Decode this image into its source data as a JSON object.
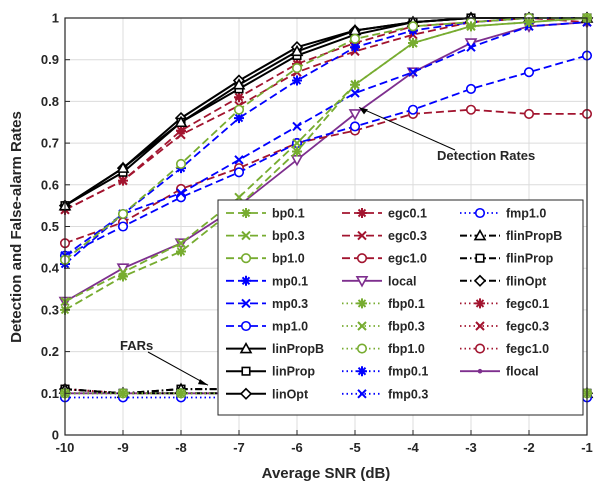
{
  "chart_data": {
    "type": "line",
    "xlabel": "Average SNR (dB)",
    "ylabel": "Detection and False-alarm Rates",
    "xlim": [
      -10,
      -1
    ],
    "ylim": [
      0,
      1
    ],
    "xticks": [
      "-10",
      "-9",
      "-8",
      "-7",
      "-6",
      "-5",
      "-4",
      "-3",
      "-2",
      "-1"
    ],
    "yticks": [
      "0",
      "0.1",
      "0.2",
      "0.3",
      "0.4",
      "0.5",
      "0.6",
      "0.7",
      "0.8",
      "0.9",
      "1"
    ],
    "grid": true,
    "legend_position": "bottom-right",
    "x": [
      -10,
      -9,
      -8,
      -7,
      -6,
      -5,
      -4,
      -3,
      -2,
      -1
    ],
    "annotations": [
      {
        "text": "Detection Rates",
        "target": [
          -5,
          0.8
        ]
      },
      {
        "text": "FARs",
        "target": [
          -7.5,
          0.11
        ]
      }
    ],
    "colors": {
      "green": "#77ac30",
      "blue": "#0000ff",
      "darkred": "#a2142f",
      "black": "#000000",
      "purple": "#7e2f8e"
    },
    "series": [
      {
        "name": "bp0.1",
        "color": "green",
        "dash": "long",
        "marker": "asterisk",
        "values": [
          0.3,
          0.38,
          0.44,
          0.55,
          0.68,
          0.84,
          0.94,
          0.98,
          0.99,
          1.0
        ]
      },
      {
        "name": "bp0.3",
        "color": "green",
        "dash": "long",
        "marker": "x",
        "values": [
          0.32,
          0.39,
          0.46,
          0.57,
          0.7,
          0.84,
          0.94,
          0.98,
          0.99,
          1.0
        ]
      },
      {
        "name": "bp1.0",
        "color": "green",
        "dash": "long",
        "marker": "circle",
        "values": [
          0.42,
          0.53,
          0.65,
          0.78,
          0.88,
          0.95,
          0.98,
          0.99,
          1.0,
          1.0
        ]
      },
      {
        "name": "mp0.1",
        "color": "blue",
        "dash": "long",
        "marker": "asterisk",
        "values": [
          0.41,
          0.53,
          0.64,
          0.76,
          0.85,
          0.93,
          0.97,
          0.99,
          1.0,
          1.0
        ]
      },
      {
        "name": "mp0.3",
        "color": "blue",
        "dash": "long",
        "marker": "x",
        "values": [
          0.43,
          0.53,
          0.58,
          0.66,
          0.74,
          0.82,
          0.87,
          0.93,
          0.98,
          0.99
        ]
      },
      {
        "name": "mp1.0",
        "color": "blue",
        "dash": "long",
        "marker": "circle",
        "values": [
          0.43,
          0.5,
          0.57,
          0.63,
          0.7,
          0.74,
          0.78,
          0.83,
          0.87,
          0.91
        ]
      },
      {
        "name": "linPropB",
        "color": "black",
        "dash": "solid",
        "marker": "triangle",
        "values": [
          0.55,
          0.64,
          0.75,
          0.84,
          0.92,
          0.97,
          0.99,
          1.0,
          1.0,
          1.0
        ]
      },
      {
        "name": "linProp",
        "color": "black",
        "dash": "solid",
        "marker": "square",
        "values": [
          0.55,
          0.63,
          0.75,
          0.83,
          0.91,
          0.96,
          0.99,
          1.0,
          1.0,
          1.0
        ]
      },
      {
        "name": "linOpt",
        "color": "black",
        "dash": "solid",
        "marker": "diamond",
        "values": [
          0.55,
          0.64,
          0.76,
          0.85,
          0.93,
          0.97,
          0.99,
          1.0,
          1.0,
          1.0
        ]
      },
      {
        "name": "egc0.1",
        "color": "darkred",
        "dash": "long",
        "marker": "asterisk",
        "values": [
          0.54,
          0.61,
          0.73,
          0.81,
          0.89,
          0.94,
          0.98,
          0.99,
          1.0,
          1.0
        ]
      },
      {
        "name": "egc0.3",
        "color": "darkred",
        "dash": "long",
        "marker": "x",
        "values": [
          0.54,
          0.61,
          0.72,
          0.79,
          0.87,
          0.92,
          0.96,
          0.99,
          1.0,
          0.99
        ]
      },
      {
        "name": "egc1.0",
        "color": "darkred",
        "dash": "long",
        "marker": "circle",
        "values": [
          0.46,
          0.51,
          0.59,
          0.64,
          0.7,
          0.73,
          0.77,
          0.78,
          0.77,
          0.77
        ]
      },
      {
        "name": "local",
        "color": "purple",
        "dash": "solid",
        "marker": "triangle-down",
        "values": [
          0.32,
          0.4,
          0.46,
          0.55,
          0.66,
          0.77,
          0.87,
          0.94,
          0.98,
          0.99
        ]
      },
      {
        "name": "fbp0.1",
        "color": "green",
        "dash": "dot",
        "marker": "asterisk",
        "values": [
          0.1,
          0.1,
          0.1,
          0.1,
          0.1,
          0.09,
          0.1,
          0.1,
          0.1,
          0.1
        ]
      },
      {
        "name": "fbp0.3",
        "color": "green",
        "dash": "dot",
        "marker": "x",
        "values": [
          0.1,
          0.1,
          0.1,
          0.1,
          0.1,
          0.09,
          0.1,
          0.1,
          0.1,
          0.1
        ]
      },
      {
        "name": "fbp1.0",
        "color": "green",
        "dash": "dot",
        "marker": "circle",
        "values": [
          0.1,
          0.1,
          0.1,
          0.1,
          0.1,
          0.09,
          0.1,
          0.1,
          0.1,
          0.1
        ]
      },
      {
        "name": "fmp0.1",
        "color": "blue",
        "dash": "dot",
        "marker": "asterisk",
        "values": [
          0.1,
          0.1,
          0.1,
          0.1,
          0.1,
          0.09,
          0.09,
          0.1,
          0.1,
          0.1
        ]
      },
      {
        "name": "fmp0.3",
        "color": "blue",
        "dash": "dot",
        "marker": "x",
        "values": [
          0.1,
          0.1,
          0.1,
          0.1,
          0.1,
          0.09,
          0.09,
          0.1,
          0.1,
          0.1
        ]
      },
      {
        "name": "fmp1.0",
        "color": "blue",
        "dash": "dot",
        "marker": "circle",
        "values": [
          0.09,
          0.09,
          0.09,
          0.09,
          0.09,
          0.09,
          0.09,
          0.09,
          0.09,
          0.09
        ]
      },
      {
        "name": "flinPropB",
        "color": "black",
        "dash": "dashdot",
        "marker": "triangle",
        "values": [
          0.11,
          0.1,
          0.11,
          0.11,
          0.1,
          0.09,
          0.1,
          0.11,
          0.11,
          0.1
        ]
      },
      {
        "name": "flinProp",
        "color": "black",
        "dash": "dashdot",
        "marker": "square",
        "values": [
          0.11,
          0.1,
          0.11,
          0.11,
          0.1,
          0.09,
          0.09,
          0.11,
          0.11,
          0.1
        ]
      },
      {
        "name": "flinOpt",
        "color": "black",
        "dash": "dashdot",
        "marker": "diamond",
        "values": [
          0.11,
          0.1,
          0.1,
          0.1,
          0.1,
          0.09,
          0.09,
          0.11,
          0.11,
          0.1
        ]
      },
      {
        "name": "fegc0.1",
        "color": "darkred",
        "dash": "dot",
        "marker": "asterisk",
        "values": [
          0.11,
          0.1,
          0.1,
          0.1,
          0.1,
          0.1,
          0.1,
          0.1,
          0.1,
          0.1
        ]
      },
      {
        "name": "fegc0.3",
        "color": "darkred",
        "dash": "dot",
        "marker": "x",
        "values": [
          0.11,
          0.1,
          0.1,
          0.1,
          0.1,
          0.1,
          0.1,
          0.1,
          0.1,
          0.1
        ]
      },
      {
        "name": "fegc1.0",
        "color": "darkred",
        "dash": "dot",
        "marker": "circle",
        "values": [
          0.11,
          0.1,
          0.1,
          0.1,
          0.1,
          0.1,
          0.1,
          0.1,
          0.1,
          0.1
        ]
      },
      {
        "name": "flocal",
        "color": "purple",
        "dash": "solid",
        "marker": "point",
        "values": [
          0.1,
          0.1,
          0.1,
          0.1,
          0.1,
          0.1,
          0.1,
          0.1,
          0.1,
          0.1
        ]
      }
    ]
  }
}
